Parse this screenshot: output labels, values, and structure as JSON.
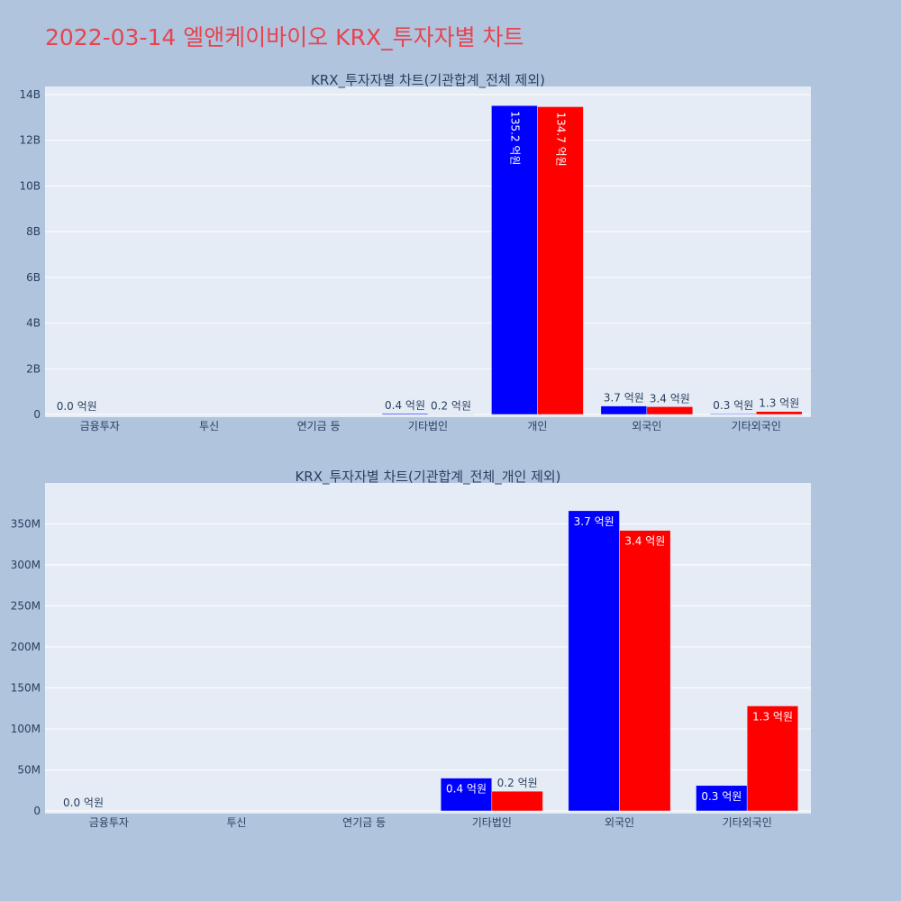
{
  "title": "2022-03-14 엘앤케이바이오 KRX_투자자별 차트",
  "colors": {
    "page_bg": "#b0c4de",
    "plot_bg": "#e5ecf6",
    "title_color": "#e8434f",
    "text": "#2a3f5f",
    "grid": "#ffffff"
  },
  "chart_data": [
    {
      "type": "bar",
      "title": "KRX_투자자별 차트(기관합계_전체 제외)",
      "categories": [
        "금융투자",
        "투신",
        "연기금 등",
        "기타법인",
        "개인",
        "외국인",
        "기타외국인"
      ],
      "series": [
        {
          "color": "#0000ff",
          "values": [
            0,
            0,
            0,
            40000000,
            13520000000,
            370000000,
            30000000
          ],
          "labels": [
            "0.0 억원",
            "",
            "",
            "0.4 억원",
            "135.2 억원",
            "3.7 억원",
            "0.3 억원"
          ]
        },
        {
          "color": "#ff0000",
          "values": [
            0,
            0,
            0,
            20000000,
            13470000000,
            340000000,
            130000000
          ],
          "labels": [
            "",
            "",
            "",
            "0.2 억원",
            "134.7 억원",
            "3.4 억원",
            "1.3 억원"
          ]
        }
      ],
      "ylim": [
        0,
        14000000000
      ],
      "yticks": [
        0,
        2000000000,
        4000000000,
        6000000000,
        8000000000,
        10000000000,
        12000000000,
        14000000000
      ],
      "ytick_labels": [
        "0",
        "2B",
        "4B",
        "6B",
        "8B",
        "10B",
        "12B",
        "14B"
      ],
      "grid": true,
      "label_mode": "outside_or_rotated"
    },
    {
      "type": "bar",
      "title": "KRX_투자자별 차트(기관합계_전체_개인 제외)",
      "categories": [
        "금융투자",
        "투신",
        "연기금 등",
        "기타법인",
        "외국인",
        "기타외국인"
      ],
      "series": [
        {
          "color": "#0000ff",
          "values": [
            0,
            0,
            0,
            40000000,
            366000000,
            31000000
          ],
          "labels": [
            "0.0 억원",
            "",
            "",
            "0.4 억원",
            "3.7 억원",
            "0.3 억원"
          ]
        },
        {
          "color": "#ff0000",
          "values": [
            0,
            0,
            0,
            24000000,
            342000000,
            128000000
          ],
          "labels": [
            "",
            "",
            "",
            "0.2 억원",
            "3.4 억원",
            "1.3 억원"
          ]
        }
      ],
      "ylim": [
        0,
        390000000
      ],
      "yticks": [
        0,
        50000000,
        100000000,
        150000000,
        200000000,
        250000000,
        300000000,
        350000000
      ],
      "ytick_labels": [
        "0",
        "50M",
        "100M",
        "150M",
        "200M",
        "250M",
        "300M",
        "350M"
      ],
      "grid": true,
      "label_mode": "inside"
    }
  ]
}
